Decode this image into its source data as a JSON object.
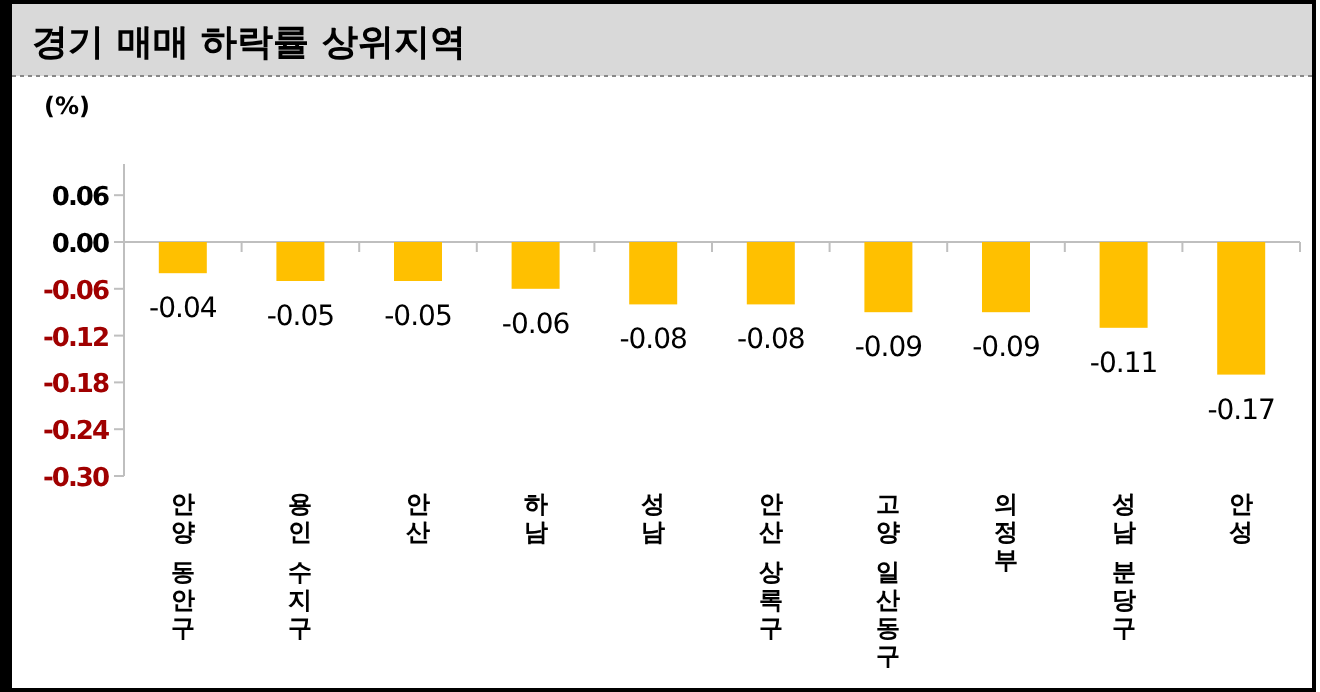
{
  "chart_data": {
    "type": "bar",
    "title": "경기 매매 하락률 상위지역",
    "ylabel": "(%)",
    "categories": [
      "안양 동안구",
      "용인 수지구",
      "안산",
      "하남",
      "성남",
      "안산 상록구",
      "고양 일산동구",
      "의정부",
      "성남 분당구",
      "안성"
    ],
    "values": [
      -0.04,
      -0.05,
      -0.05,
      -0.06,
      -0.08,
      -0.08,
      -0.09,
      -0.09,
      -0.11,
      -0.17
    ],
    "color": "#ffc000",
    "ylim": [
      -0.3,
      0.1
    ],
    "yticks": [
      0.06,
      {
        "value": 0,
        "label": "0.00"
      },
      -0.06,
      -0.12,
      -0.18,
      -0.24,
      {
        "value": -0.3,
        "label": "-0.30"
      }
    ],
    "data_labels": true
  }
}
